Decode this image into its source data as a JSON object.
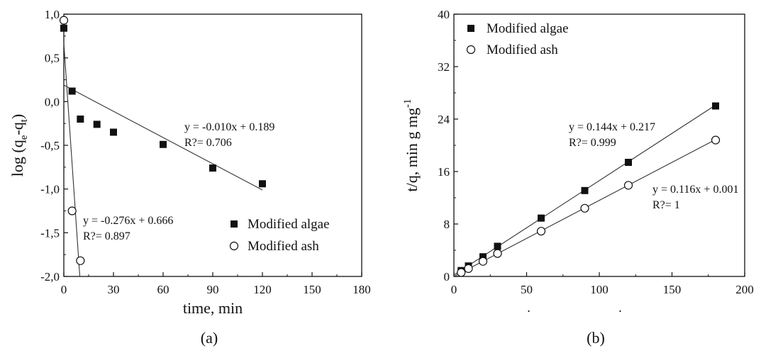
{
  "chart_data": [
    {
      "type": "scatter",
      "panel_label": "(a)",
      "xlabel": "time, min",
      "ylabel_main": "log (q",
      "ylabel_sub1": "e",
      "ylabel_mid": "-q",
      "ylabel_sub2": "t",
      "ylabel_end": ")",
      "xlim": [
        0,
        180
      ],
      "ylim": [
        -2.0,
        1.0
      ],
      "x_ticks": [
        0,
        30,
        60,
        90,
        120,
        150,
        180
      ],
      "x_tick_labels": [
        "0",
        "30",
        "60",
        "90",
        "120",
        "150",
        "180"
      ],
      "y_ticks": [
        1.0,
        0.5,
        0.0,
        -0.5,
        -1.0,
        -1.5,
        -2.0
      ],
      "y_tick_labels": [
        "1,0",
        "0,5",
        "0,0",
        "-0,5",
        "-1,0",
        "-1,5",
        "-2,0"
      ],
      "legend_position": "bottom-right",
      "series": [
        {
          "name": "Modified algae",
          "marker": "filled-square",
          "x": [
            0,
            5,
            10,
            20,
            30,
            60,
            90,
            120
          ],
          "y": [
            0.84,
            0.12,
            -0.2,
            -0.26,
            -0.35,
            -0.49,
            -0.76,
            -0.94
          ],
          "fit": {
            "slope": -0.01,
            "intercept": 0.189,
            "x_range": [
              0,
              120
            ]
          },
          "equation": "y = -0.010x + 0.189",
          "r2": "R?= 0.706"
        },
        {
          "name": "Modified ash",
          "marker": "open-circle",
          "x": [
            0,
            5,
            10
          ],
          "y": [
            0.93,
            -1.25,
            -1.82
          ],
          "fit": {
            "slope": -0.276,
            "intercept": 0.666,
            "x_range": [
              0,
              10
            ]
          },
          "equation": "y = -0.276x + 0.666",
          "r2": "R?= 0.897"
        }
      ]
    },
    {
      "type": "scatter",
      "panel_label": "(b)",
      "xlabel": ". .",
      "ylabel": "t/q, min g mg",
      "ylabel_sup": "-1",
      "xlim": [
        0,
        200
      ],
      "ylim": [
        0,
        40
      ],
      "x_ticks": [
        0,
        50,
        100,
        150,
        200
      ],
      "x_tick_labels": [
        "0",
        "50",
        "100",
        "150",
        "200"
      ],
      "y_ticks": [
        0,
        8,
        16,
        24,
        32,
        40
      ],
      "y_tick_labels": [
        "0",
        "8",
        "16",
        "24",
        "32",
        "40"
      ],
      "legend_position": "top-left",
      "series": [
        {
          "name": "Modified algae",
          "marker": "filled-square",
          "x": [
            5,
            10,
            20,
            30,
            60,
            90,
            120,
            180
          ],
          "y": [
            0.9,
            1.6,
            3.0,
            4.6,
            8.9,
            13.1,
            17.4,
            26.0
          ],
          "fit": {
            "slope": 0.144,
            "intercept": 0.217,
            "x_range": [
              0,
              180
            ]
          },
          "equation": "y = 0.144x + 0.217",
          "r2": "R?= 0.999"
        },
        {
          "name": "Modified ash",
          "marker": "open-circle",
          "x": [
            5,
            10,
            20,
            30,
            60,
            90,
            120,
            180
          ],
          "y": [
            0.6,
            1.2,
            2.3,
            3.5,
            6.9,
            10.4,
            13.9,
            20.8
          ],
          "fit": {
            "slope": 0.116,
            "intercept": 0.001,
            "x_range": [
              0,
              180
            ]
          },
          "equation": "y = 0.116x + 0.001",
          "r2": "R?= 1"
        }
      ]
    }
  ]
}
